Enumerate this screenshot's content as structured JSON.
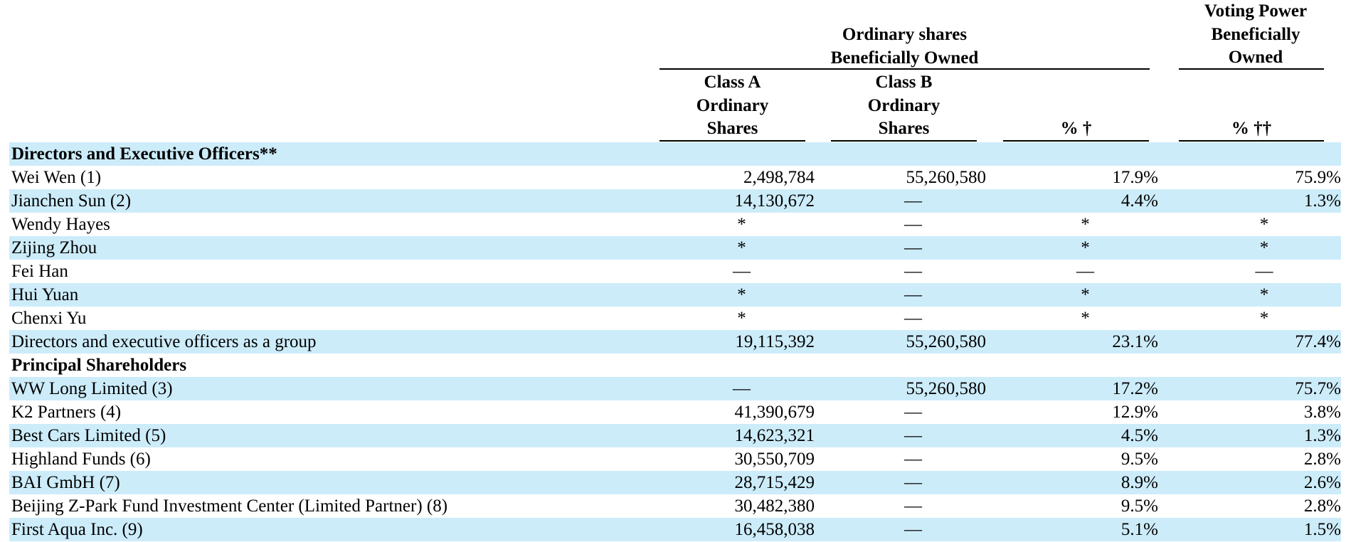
{
  "header": {
    "ordinary_group": [
      "Ordinary shares",
      "Beneficially Owned"
    ],
    "voting_group": [
      "Voting Power",
      "Beneficially",
      "Owned"
    ],
    "class_a": [
      "Class A",
      "Ordinary",
      "Shares"
    ],
    "class_b": [
      "Class B",
      "Ordinary",
      "Shares"
    ],
    "pct": "% †",
    "pct_voting": "% ††"
  },
  "rows": [
    {
      "type": "section",
      "name": "Directors and Executive Officers**",
      "shade": true
    },
    {
      "type": "data",
      "name": "Wei Wen (1)",
      "class_a": "2,498,784",
      "class_b": "55,260,580",
      "pct": "17.9%",
      "voting": "75.9%",
      "shade": false
    },
    {
      "type": "data",
      "name": "Jianchen Sun (2)",
      "class_a": "14,130,672",
      "class_b": "—",
      "pct": "4.4%",
      "voting": "1.3%",
      "shade": true
    },
    {
      "type": "data",
      "name": "Wendy Hayes",
      "class_a": "*",
      "class_b": "—",
      "pct": "*",
      "voting": "*",
      "shade": false
    },
    {
      "type": "data",
      "name": "Zijing Zhou",
      "class_a": "*",
      "class_b": "—",
      "pct": "*",
      "voting": "*",
      "shade": true
    },
    {
      "type": "data",
      "name": "Fei Han",
      "class_a": "—",
      "class_b": "—",
      "pct": "—",
      "voting": "—",
      "shade": false
    },
    {
      "type": "data",
      "name": "Hui Yuan",
      "class_a": "*",
      "class_b": "—",
      "pct": "*",
      "voting": "*",
      "shade": true
    },
    {
      "type": "data",
      "name": "Chenxi Yu",
      "class_a": "*",
      "class_b": "—",
      "pct": "*",
      "voting": "*",
      "shade": false
    },
    {
      "type": "data",
      "name": "Directors and executive officers as a group",
      "class_a": "19,115,392",
      "class_b": "55,260,580",
      "pct": "23.1%",
      "voting": "77.4%",
      "shade": true
    },
    {
      "type": "section",
      "name": "Principal Shareholders",
      "shade": false
    },
    {
      "type": "data",
      "name": "WW Long Limited (3)",
      "class_a": "—",
      "class_b": "55,260,580",
      "pct": "17.2%",
      "voting": "75.7%",
      "shade": true
    },
    {
      "type": "data",
      "name": "K2 Partners (4)",
      "class_a": "41,390,679",
      "class_b": "—",
      "pct": "12.9%",
      "voting": "3.8%",
      "shade": false
    },
    {
      "type": "data",
      "name": "Best Cars Limited (5)",
      "class_a": "14,623,321",
      "class_b": "—",
      "pct": "4.5%",
      "voting": "1.3%",
      "shade": true
    },
    {
      "type": "data",
      "name": "Highland Funds (6)",
      "class_a": "30,550,709",
      "class_b": "—",
      "pct": "9.5%",
      "voting": "2.8%",
      "shade": false
    },
    {
      "type": "data",
      "name": "BAI GmbH (7)",
      "class_a": "28,715,429",
      "class_b": "—",
      "pct": "8.9%",
      "voting": "2.6%",
      "shade": true
    },
    {
      "type": "data",
      "name": "Beijing Z-Park Fund Investment Center (Limited Partner) (8)",
      "class_a": "30,482,380",
      "class_b": "—",
      "pct": "9.5%",
      "voting": "2.8%",
      "shade": false
    },
    {
      "type": "data",
      "name": "First Aqua Inc. (9)",
      "class_a": "16,458,038",
      "class_b": "—",
      "pct": "5.1%",
      "voting": "1.5%",
      "shade": true
    }
  ]
}
